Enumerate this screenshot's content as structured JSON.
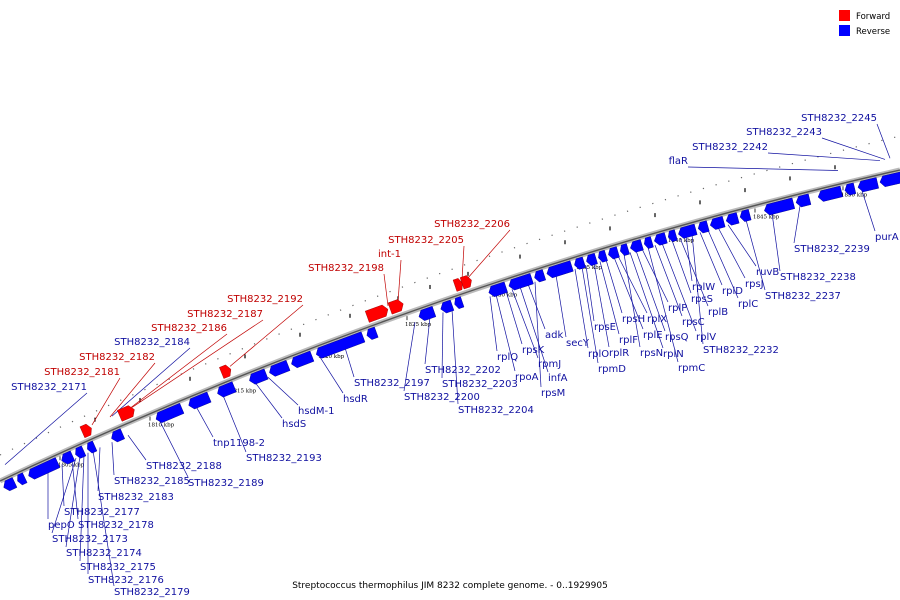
{
  "caption": "Streptococcus thermophilus JIM 8232 complete genome. - 0..1929905",
  "legend": [
    {
      "label": "Forward",
      "color": "#ff0000"
    },
    {
      "label": "Reverse",
      "color": "#0000ff"
    }
  ],
  "colors": {
    "forward": "#ff0000",
    "reverse": "#0000ff",
    "forward_label": "#c00000",
    "reverse_label": "#1010a0",
    "backbone": "#888888"
  },
  "ticks": [
    "1805 kbp",
    "1810 kbp",
    "1815 kbp",
    "1820 kbp",
    "1825 kbp",
    "1830 kbp",
    "1835 kbp",
    "1840 kbp",
    "1845 kbp",
    "1850 kbp"
  ],
  "forward_labels": [
    "STH8232_2181",
    "STH8232_2182",
    "STH8232_2186",
    "STH8232_2187",
    "STH8232_2192",
    "STH8232_2198",
    "int-1",
    "STH8232_2205",
    "STH8232_2206"
  ],
  "reverse_labels_above": [
    "STH8232_2171",
    "STH8232_2184",
    "flaR",
    "STH8232_2242",
    "STH8232_2243",
    "STH8232_2245"
  ],
  "reverse_labels_below": [
    "pepO",
    "STH8232_2177",
    "STH8232_2178",
    "STH8232_2173",
    "STH8232_2174",
    "STH8232_2175",
    "STH8232_2176",
    "STH8232_2179",
    "STH8232_2183",
    "STH8232_2185",
    "STH8232_2188",
    "STH8232_2189",
    "tnp1198-2",
    "STH8232_2193",
    "hsdS",
    "hsdM-1",
    "hsdR",
    "STH8232_2197",
    "STH8232_2200",
    "STH8232_2202",
    "STH8232_2203",
    "STH8232_2204",
    "rplQ",
    "rpoA",
    "rpsK",
    "rpmJ",
    "infA",
    "adk",
    "rpsM",
    "secY",
    "rplO",
    "rpmD",
    "rpsE",
    "rplR",
    "rplF",
    "rpsH",
    "rplE",
    "rplX",
    "rpsN",
    "rplN",
    "rpsQ",
    "rplP",
    "rpmC",
    "rpsC",
    "rplV",
    "rpsS",
    "rplB",
    "rplW",
    "rplD",
    "rplC",
    "rpsJ",
    "ruvB",
    "STH8232_2232",
    "STH8232_2237",
    "STH8232_2238",
    "STH8232_2239",
    "purA"
  ]
}
